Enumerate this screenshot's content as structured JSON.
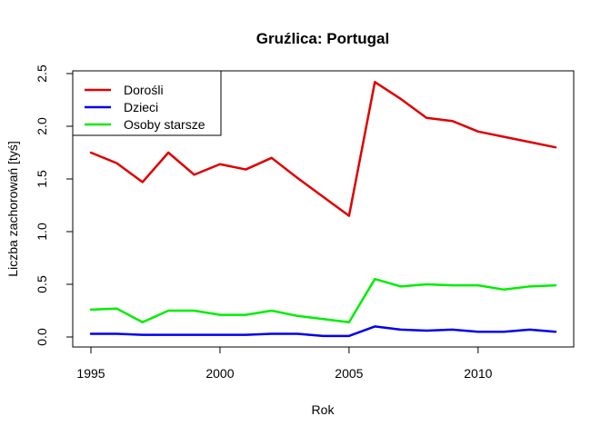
{
  "chart_data": {
    "type": "line",
    "title": "Gruźlica: Portugal",
    "xlabel": "Rok",
    "ylabel": "Liczba zachorowań [tyś]",
    "x": [
      1995,
      1996,
      1997,
      1998,
      1999,
      2000,
      2001,
      2002,
      2003,
      2004,
      2005,
      2006,
      2007,
      2008,
      2009,
      2010,
      2011,
      2012,
      2013
    ],
    "xlim": [
      1995,
      2013
    ],
    "ylim": [
      0,
      2.5
    ],
    "xticks": [
      1995,
      2000,
      2005,
      2010
    ],
    "yticks": [
      0.0,
      0.5,
      1.0,
      1.5,
      2.0,
      2.5
    ],
    "xtick_labels": [
      "1995",
      "2000",
      "2005",
      "2010"
    ],
    "ytick_labels": [
      "0.0",
      "0.5",
      "1.0",
      "1.5",
      "2.0",
      "2.5"
    ],
    "grid": false,
    "legend_position": "top-left",
    "series": [
      {
        "name": "Dorośli",
        "color": "#e00000",
        "values": [
          1.75,
          1.65,
          1.47,
          1.75,
          1.54,
          1.64,
          1.59,
          1.7,
          1.51,
          1.33,
          1.15,
          2.42,
          2.26,
          2.08,
          2.05,
          1.95,
          1.9,
          1.85,
          1.8
        ]
      },
      {
        "name": "Dzieci",
        "color": "#0000ee",
        "values": [
          0.03,
          0.03,
          0.02,
          0.02,
          0.02,
          0.02,
          0.02,
          0.03,
          0.03,
          0.01,
          0.01,
          0.1,
          0.07,
          0.06,
          0.07,
          0.05,
          0.05,
          0.07,
          0.05
        ]
      },
      {
        "name": "Osoby starsze",
        "color": "#00ee00",
        "values": [
          0.26,
          0.27,
          0.14,
          0.25,
          0.25,
          0.21,
          0.21,
          0.25,
          0.2,
          0.17,
          0.14,
          0.55,
          0.48,
          0.5,
          0.49,
          0.49,
          0.45,
          0.48,
          0.49
        ]
      }
    ]
  }
}
